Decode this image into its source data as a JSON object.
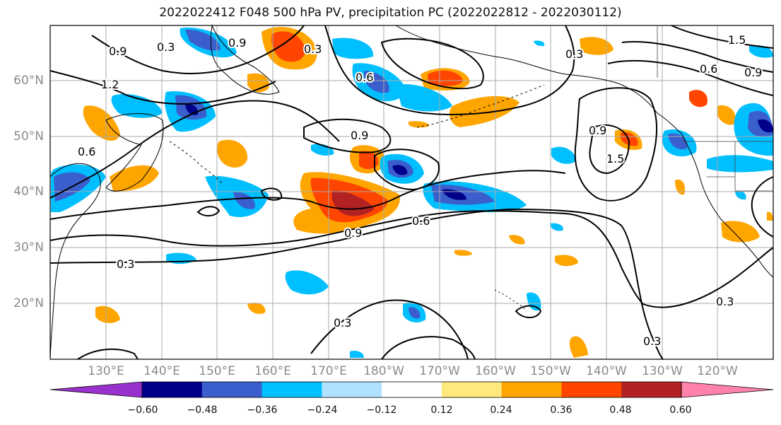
{
  "title": "2022022412 F048 500 hPa PV, precipitation PC (2022022812 - 2022030112)",
  "lat_labels": [
    "60°N",
    "50°N",
    "40°N",
    "30°N",
    "20°N"
  ],
  "lon_labels": [
    "130°E",
    "140°E",
    "150°E",
    "160°E",
    "170°E",
    "180°W",
    "170°W",
    "160°W",
    "150°W",
    "140°W",
    "130°W",
    "120°W"
  ],
  "contour_labels": [
    "0.3",
    "0.6",
    "0.9",
    "1.2",
    "1.5"
  ],
  "colorbar": {
    "ticks": [
      "−0.60",
      "−0.48",
      "−0.36",
      "−0.24",
      "−0.12",
      "0.12",
      "0.24",
      "0.36",
      "0.48",
      "0.60"
    ],
    "colors": [
      "#9932cc",
      "#00008b",
      "#3a5fcd",
      "#00bfff",
      "#b0e2ff",
      "#ffffff",
      "#ffe87c",
      "#ffa500",
      "#ff4500",
      "#b22222",
      "#ff82ab"
    ]
  },
  "colors": {
    "grid": "#aaaaaa",
    "contour": "#000000",
    "coast": "#000000"
  }
}
